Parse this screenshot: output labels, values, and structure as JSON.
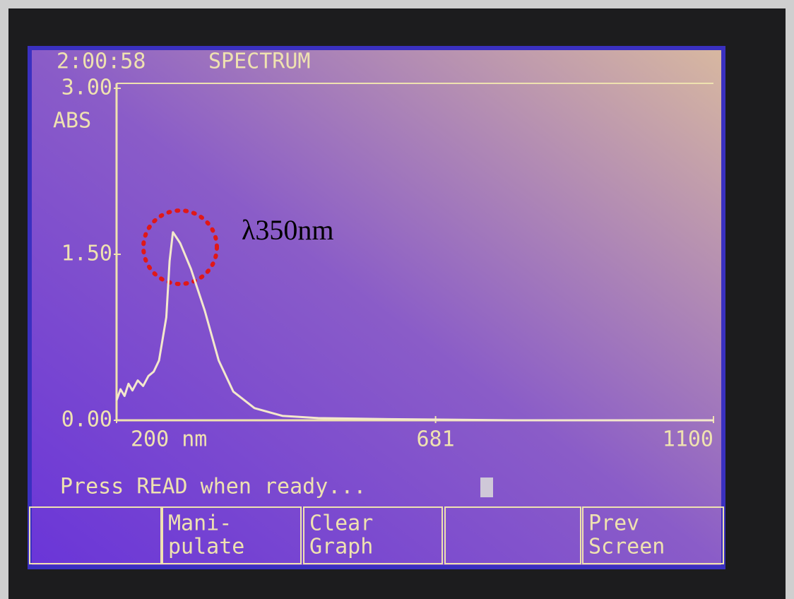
{
  "header": {
    "time": "2:00:58",
    "mode": "SPECTRUM"
  },
  "chart_data": {
    "type": "line",
    "y_label": "ABS",
    "color": "#f4e8cc",
    "x": [
      200,
      206,
      212,
      218,
      224,
      232,
      240,
      248,
      256,
      264,
      275,
      280,
      285,
      296,
      312,
      333,
      354,
      376,
      408,
      450,
      504,
      610,
      800,
      1100
    ],
    "values": [
      0.18,
      0.28,
      0.22,
      0.33,
      0.27,
      0.36,
      0.31,
      0.4,
      0.44,
      0.54,
      0.93,
      1.44,
      1.7,
      1.6,
      1.37,
      0.99,
      0.54,
      0.26,
      0.11,
      0.04,
      0.02,
      0.01,
      0.0,
      0.0
    ],
    "xlim": [
      200,
      1100
    ],
    "ylim": [
      0,
      3
    ],
    "xticks": [
      {
        "value": 200,
        "label": "200 nm"
      },
      681,
      1100
    ],
    "yticks": [
      {
        "value": 0,
        "label": "0.00"
      },
      {
        "value": 1.5,
        "label": "1.50"
      },
      {
        "value": 3,
        "label": "3.00"
      }
    ],
    "annotation": "λ350nm"
  },
  "status": "Press READ when ready...",
  "buttons": [
    [
      "Mani-",
      "pulate"
    ],
    [
      "Clear",
      "Graph"
    ],
    [
      "Prev",
      "Screen"
    ]
  ]
}
